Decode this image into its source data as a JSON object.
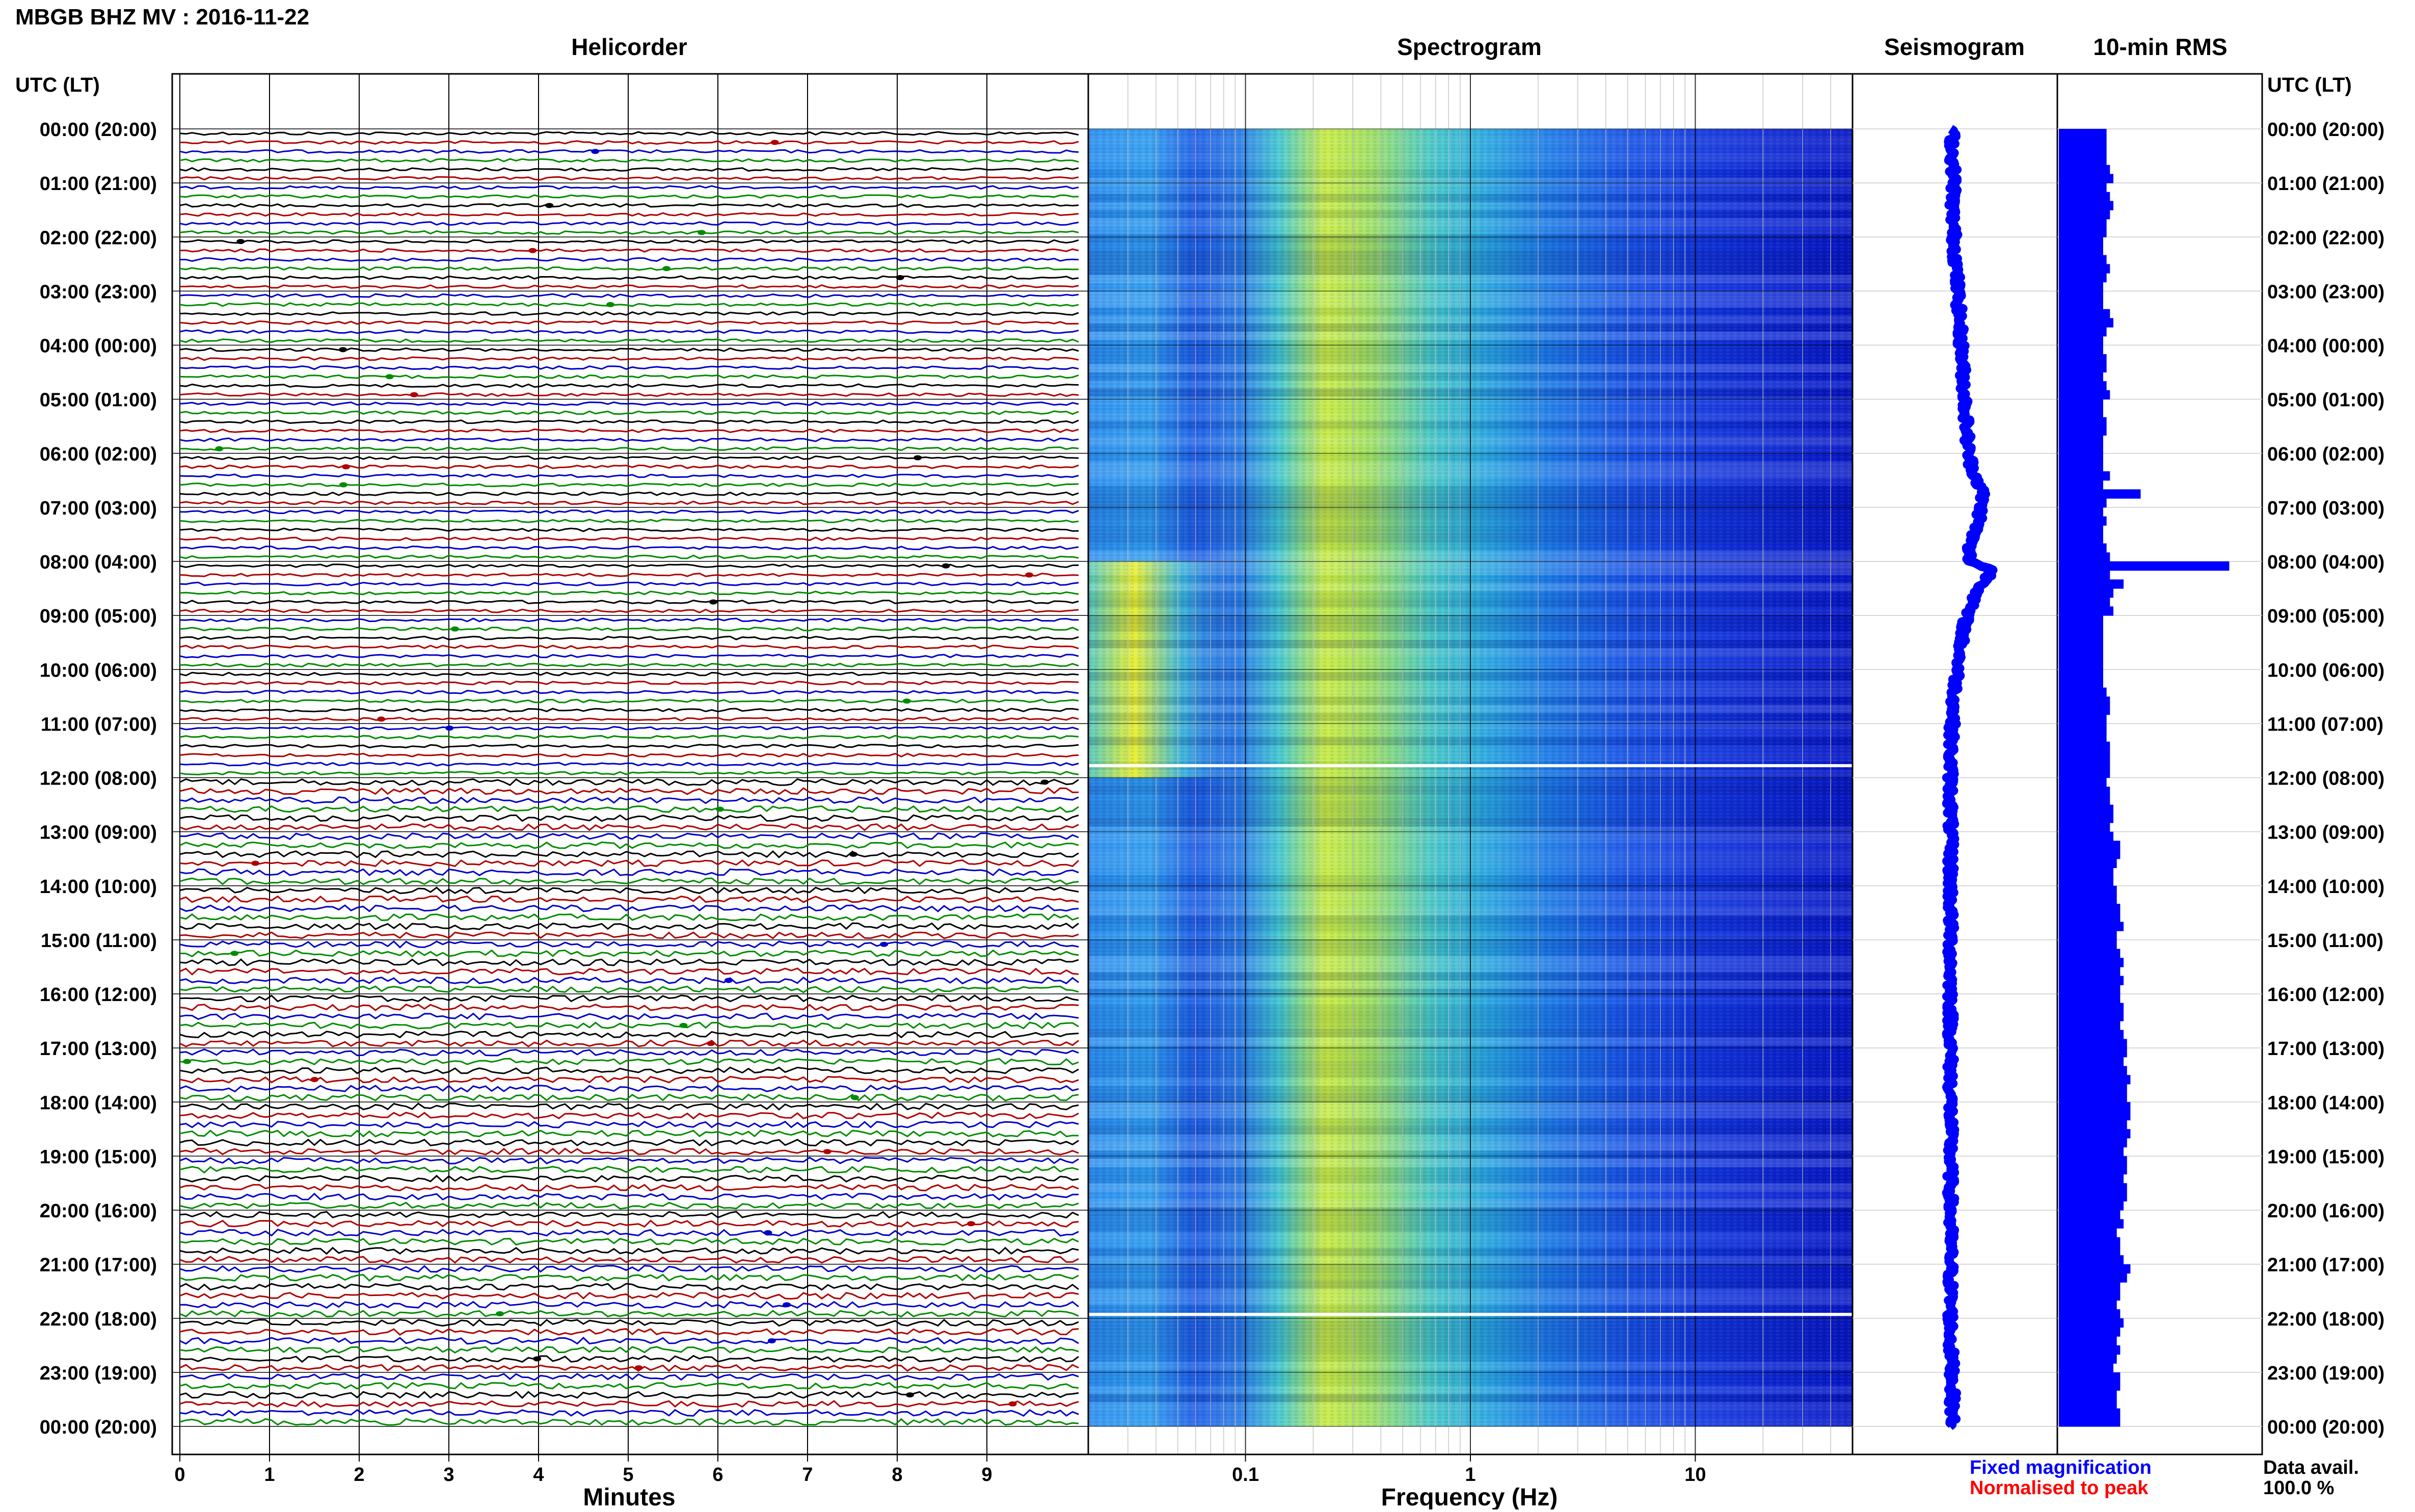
{
  "header": {
    "title": "MBGB BHZ MV : 2016-11-22"
  },
  "panels": {
    "helicorder_title": "Helicorder",
    "spectrogram_title": "Spectrogram",
    "seismogram_title": "Seismogram",
    "rms_title": "10-min RMS"
  },
  "time_axis": {
    "left_header": "UTC (LT)",
    "right_header": "UTC (LT)",
    "labels": [
      "00:00 (20:00)",
      "01:00 (21:00)",
      "02:00 (22:00)",
      "03:00 (23:00)",
      "04:00 (00:00)",
      "05:00 (01:00)",
      "06:00 (02:00)",
      "07:00 (03:00)",
      "08:00 (04:00)",
      "09:00 (05:00)",
      "10:00 (06:00)",
      "11:00 (07:00)",
      "12:00 (08:00)",
      "13:00 (09:00)",
      "14:00 (10:00)",
      "15:00 (11:00)",
      "16:00 (12:00)",
      "17:00 (13:00)",
      "18:00 (14:00)",
      "19:00 (15:00)",
      "20:00 (16:00)",
      "21:00 (17:00)",
      "22:00 (18:00)",
      "23:00 (19:00)",
      "00:00 (20:00)"
    ]
  },
  "footer": {
    "helicorder_xlabel": "Minutes",
    "spectrogram_xlabel": "Frequency (Hz)",
    "legend_fixed": "Fixed magnification",
    "legend_normalised": "Normalised to peak",
    "data_avail_label": "Data avail.",
    "data_avail_value": "100.0 %"
  },
  "colors": {
    "trace_cycle": [
      "#000000",
      "#b00000",
      "#0000c8",
      "#008c00"
    ],
    "seismogram": "#0000ff",
    "rms_bar": "#0000ff",
    "legend_fixed": "#0000ff",
    "legend_normalised": "#ff0000",
    "spectrogram_low": "#0018e0",
    "spectrogram_high": "#f0f020"
  },
  "chart_data": [
    {
      "type": "line",
      "name": "helicorder",
      "xlabel": "Minutes",
      "x_ticks": [
        0,
        1,
        2,
        3,
        4,
        5,
        6,
        7,
        8,
        9
      ],
      "xlim": [
        0,
        10
      ],
      "rows_per_hour": 6,
      "hours": 24,
      "grid": true
    },
    {
      "type": "heatmap",
      "name": "spectrogram",
      "xlabel": "Frequency (Hz)",
      "x_scale": "log",
      "x_ticks": [
        0.1,
        1,
        10
      ],
      "xlim": [
        0.02,
        50
      ],
      "energy_peak_hz": 0.3,
      "gap_hours": [
        11.75,
        21.9
      ]
    },
    {
      "type": "line",
      "name": "seismogram",
      "offset_hours": [
        0,
        0.5,
        1,
        1.5,
        2,
        2.5,
        3,
        3.5,
        4,
        4.5,
        5,
        5.5,
        6,
        6.25,
        6.5,
        6.75,
        7,
        7.25,
        7.5,
        7.75,
        8,
        8.15,
        8.3,
        8.5,
        8.75,
        9,
        9.5,
        10,
        10.5,
        11,
        11.5,
        12,
        12.5,
        13,
        13.5,
        14,
        14.5,
        15,
        15.5,
        16,
        16.5,
        17,
        17.5,
        18,
        18.5,
        19,
        19.5,
        20,
        20.5,
        21,
        21.5,
        22,
        22.5,
        23,
        23.5,
        24
      ],
      "offset_values": [
        0,
        0,
        0.05,
        0,
        0.05,
        0.1,
        0.15,
        0.2,
        0.25,
        0.3,
        0.35,
        0.4,
        0.45,
        0.55,
        0.7,
        0.85,
        0.8,
        0.75,
        0.6,
        0.45,
        0.5,
        1.1,
        1.0,
        0.8,
        0.55,
        0.4,
        0.25,
        0.15,
        0.05,
        0,
        -0.05,
        -0.05,
        -0.05,
        -0.05,
        -0.05,
        -0.05,
        -0.05,
        -0.05,
        -0.05,
        -0.05,
        -0.05,
        -0.05,
        -0.05,
        -0.05,
        -0.05,
        -0.05,
        -0.05,
        -0.05,
        -0.05,
        -0.05,
        -0.05,
        -0.05,
        -0.05,
        0,
        0,
        0
      ]
    },
    {
      "type": "bar",
      "name": "10-min RMS",
      "values": [
        0.28,
        0.28,
        0.28,
        0.28,
        0.3,
        0.32,
        0.28,
        0.3,
        0.32,
        0.3,
        0.28,
        0.28,
        0.26,
        0.26,
        0.28,
        0.3,
        0.28,
        0.26,
        0.26,
        0.26,
        0.3,
        0.32,
        0.28,
        0.26,
        0.26,
        0.28,
        0.28,
        0.26,
        0.28,
        0.3,
        0.26,
        0.26,
        0.28,
        0.28,
        0.26,
        0.26,
        0.26,
        0.26,
        0.3,
        0.26,
        0.26,
        0.26,
        0.26,
        0.28,
        0.26,
        0.26,
        0.28,
        0.3,
        0.28,
        0.3,
        0.26,
        0.26,
        0.28,
        0.3,
        0.26,
        0.26,
        0.32,
        0.28,
        0.26,
        0.26,
        0.26,
        0.26,
        0.28,
        0.26,
        0.26,
        0.26,
        0.26,
        0.26,
        0.26,
        0.28,
        0.28,
        0.26,
        0.26,
        0.26,
        0.28,
        0.28,
        0.26,
        0.26,
        0.26,
        0.3,
        0.3,
        0.32,
        0.3,
        0.28,
        0.26,
        0.26,
        0.26,
        0.26,
        0.26,
        0.26,
        0.26,
        0.26,
        0.26,
        0.26,
        0.26,
        0.26,
        0.26,
        0.26,
        0.26,
        0.26,
        0.26,
        0.26,
        0.26,
        0.26,
        0.26,
        0.26,
        0.26,
        0.26,
        0.26,
        0.26,
        0.26,
        0.26,
        0.26,
        0.26,
        0.26,
        0.26,
        0.26,
        0.26,
        0.26,
        0.26,
        0.26,
        0.26,
        0.26,
        0.26,
        0.26,
        0.26,
        0.26,
        0.26,
        0.26,
        0.26,
        0.26,
        0.26,
        0.26,
        0.26,
        0.26,
        0.26,
        0.26,
        0.26,
        0.26,
        0.26,
        0.26,
        0.26
      ],
      "values_overrides": [
        [
          40,
          0.48
        ],
        [
          41,
          0.28
        ],
        [
          48,
          1.0
        ],
        [
          50,
          0.38
        ],
        [
          51,
          0.32
        ],
        [
          52,
          0.3
        ],
        [
          53,
          0.32
        ],
        [
          54,
          0.26
        ],
        [
          55,
          0.26
        ],
        [
          56,
          0.26
        ],
        [
          57,
          0.26
        ],
        [
          58,
          0.26
        ],
        [
          59,
          0.26
        ],
        [
          60,
          0.26
        ],
        [
          61,
          0.26
        ],
        [
          62,
          0.28
        ],
        [
          63,
          0.3
        ],
        [
          64,
          0.3
        ],
        [
          65,
          0.28
        ],
        [
          66,
          0.28
        ],
        [
          67,
          0.28
        ],
        [
          68,
          0.3
        ],
        [
          69,
          0.3
        ],
        [
          70,
          0.3
        ],
        [
          71,
          0.3
        ],
        [
          72,
          0.28
        ],
        [
          73,
          0.3
        ],
        [
          74,
          0.3
        ],
        [
          75,
          0.32
        ],
        [
          76,
          0.32
        ],
        [
          77,
          0.3
        ],
        [
          78,
          0.32
        ],
        [
          79,
          0.36
        ],
        [
          80,
          0.36
        ],
        [
          81,
          0.34
        ],
        [
          82,
          0.32
        ],
        [
          83,
          0.32
        ],
        [
          84,
          0.34
        ],
        [
          85,
          0.34
        ],
        [
          86,
          0.36
        ],
        [
          87,
          0.36
        ],
        [
          88,
          0.38
        ],
        [
          89,
          0.34
        ],
        [
          90,
          0.34
        ],
        [
          91,
          0.36
        ],
        [
          92,
          0.38
        ],
        [
          93,
          0.36
        ],
        [
          94,
          0.38
        ],
        [
          95,
          0.36
        ],
        [
          96,
          0.36
        ],
        [
          97,
          0.38
        ],
        [
          98,
          0.38
        ],
        [
          99,
          0.36
        ],
        [
          100,
          0.38
        ],
        [
          101,
          0.4
        ],
        [
          102,
          0.4
        ],
        [
          103,
          0.38
        ],
        [
          104,
          0.4
        ],
        [
          105,
          0.42
        ],
        [
          106,
          0.4
        ],
        [
          107,
          0.4
        ],
        [
          108,
          0.42
        ],
        [
          109,
          0.42
        ],
        [
          110,
          0.4
        ],
        [
          111,
          0.42
        ],
        [
          112,
          0.4
        ],
        [
          113,
          0.38
        ],
        [
          114,
          0.4
        ],
        [
          115,
          0.4
        ],
        [
          116,
          0.38
        ],
        [
          117,
          0.4
        ],
        [
          118,
          0.4
        ],
        [
          119,
          0.38
        ],
        [
          120,
          0.36
        ],
        [
          121,
          0.38
        ],
        [
          122,
          0.34
        ],
        [
          123,
          0.36
        ],
        [
          124,
          0.36
        ],
        [
          125,
          0.38
        ],
        [
          126,
          0.42
        ],
        [
          127,
          0.4
        ],
        [
          128,
          0.36
        ],
        [
          129,
          0.36
        ],
        [
          130,
          0.34
        ],
        [
          131,
          0.36
        ],
        [
          132,
          0.38
        ],
        [
          133,
          0.36
        ],
        [
          134,
          0.34
        ],
        [
          135,
          0.36
        ],
        [
          136,
          0.34
        ],
        [
          137,
          0.32
        ],
        [
          138,
          0.36
        ],
        [
          139,
          0.36
        ],
        [
          140,
          0.34
        ],
        [
          141,
          0.34
        ],
        [
          142,
          0.36
        ],
        [
          143,
          0.36
        ]
      ],
      "values_overrides_b": [
        [
          49,
          0.42
        ],
        [
          50,
          0.4
        ],
        [
          51,
          0.38
        ],
        [
          52,
          0.33
        ],
        [
          53,
          0.38
        ],
        [
          54,
          0.32
        ]
      ]
    }
  ]
}
